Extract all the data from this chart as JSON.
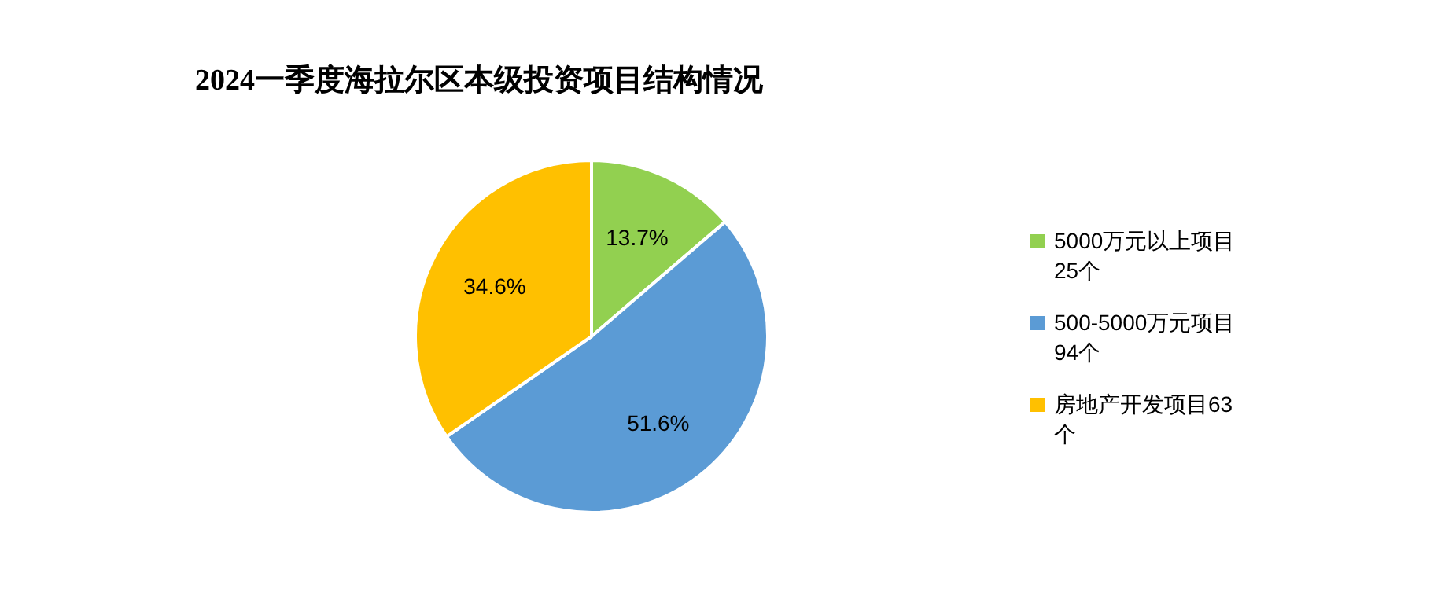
{
  "chart_data": {
    "type": "pie",
    "title": "2024一季度海拉尔区本级投资项目结构情况",
    "categories": [
      "5000万元以上项目25个",
      "500-5000万元项目94个",
      "房地产开发项目63个"
    ],
    "values": [
      13.7,
      51.6,
      34.6
    ],
    "colors": [
      "#92d050",
      "#5b9bd5",
      "#ffc000"
    ],
    "value_labels": [
      "13.7%",
      "51.6%",
      "34.6%"
    ],
    "legend": "right"
  }
}
